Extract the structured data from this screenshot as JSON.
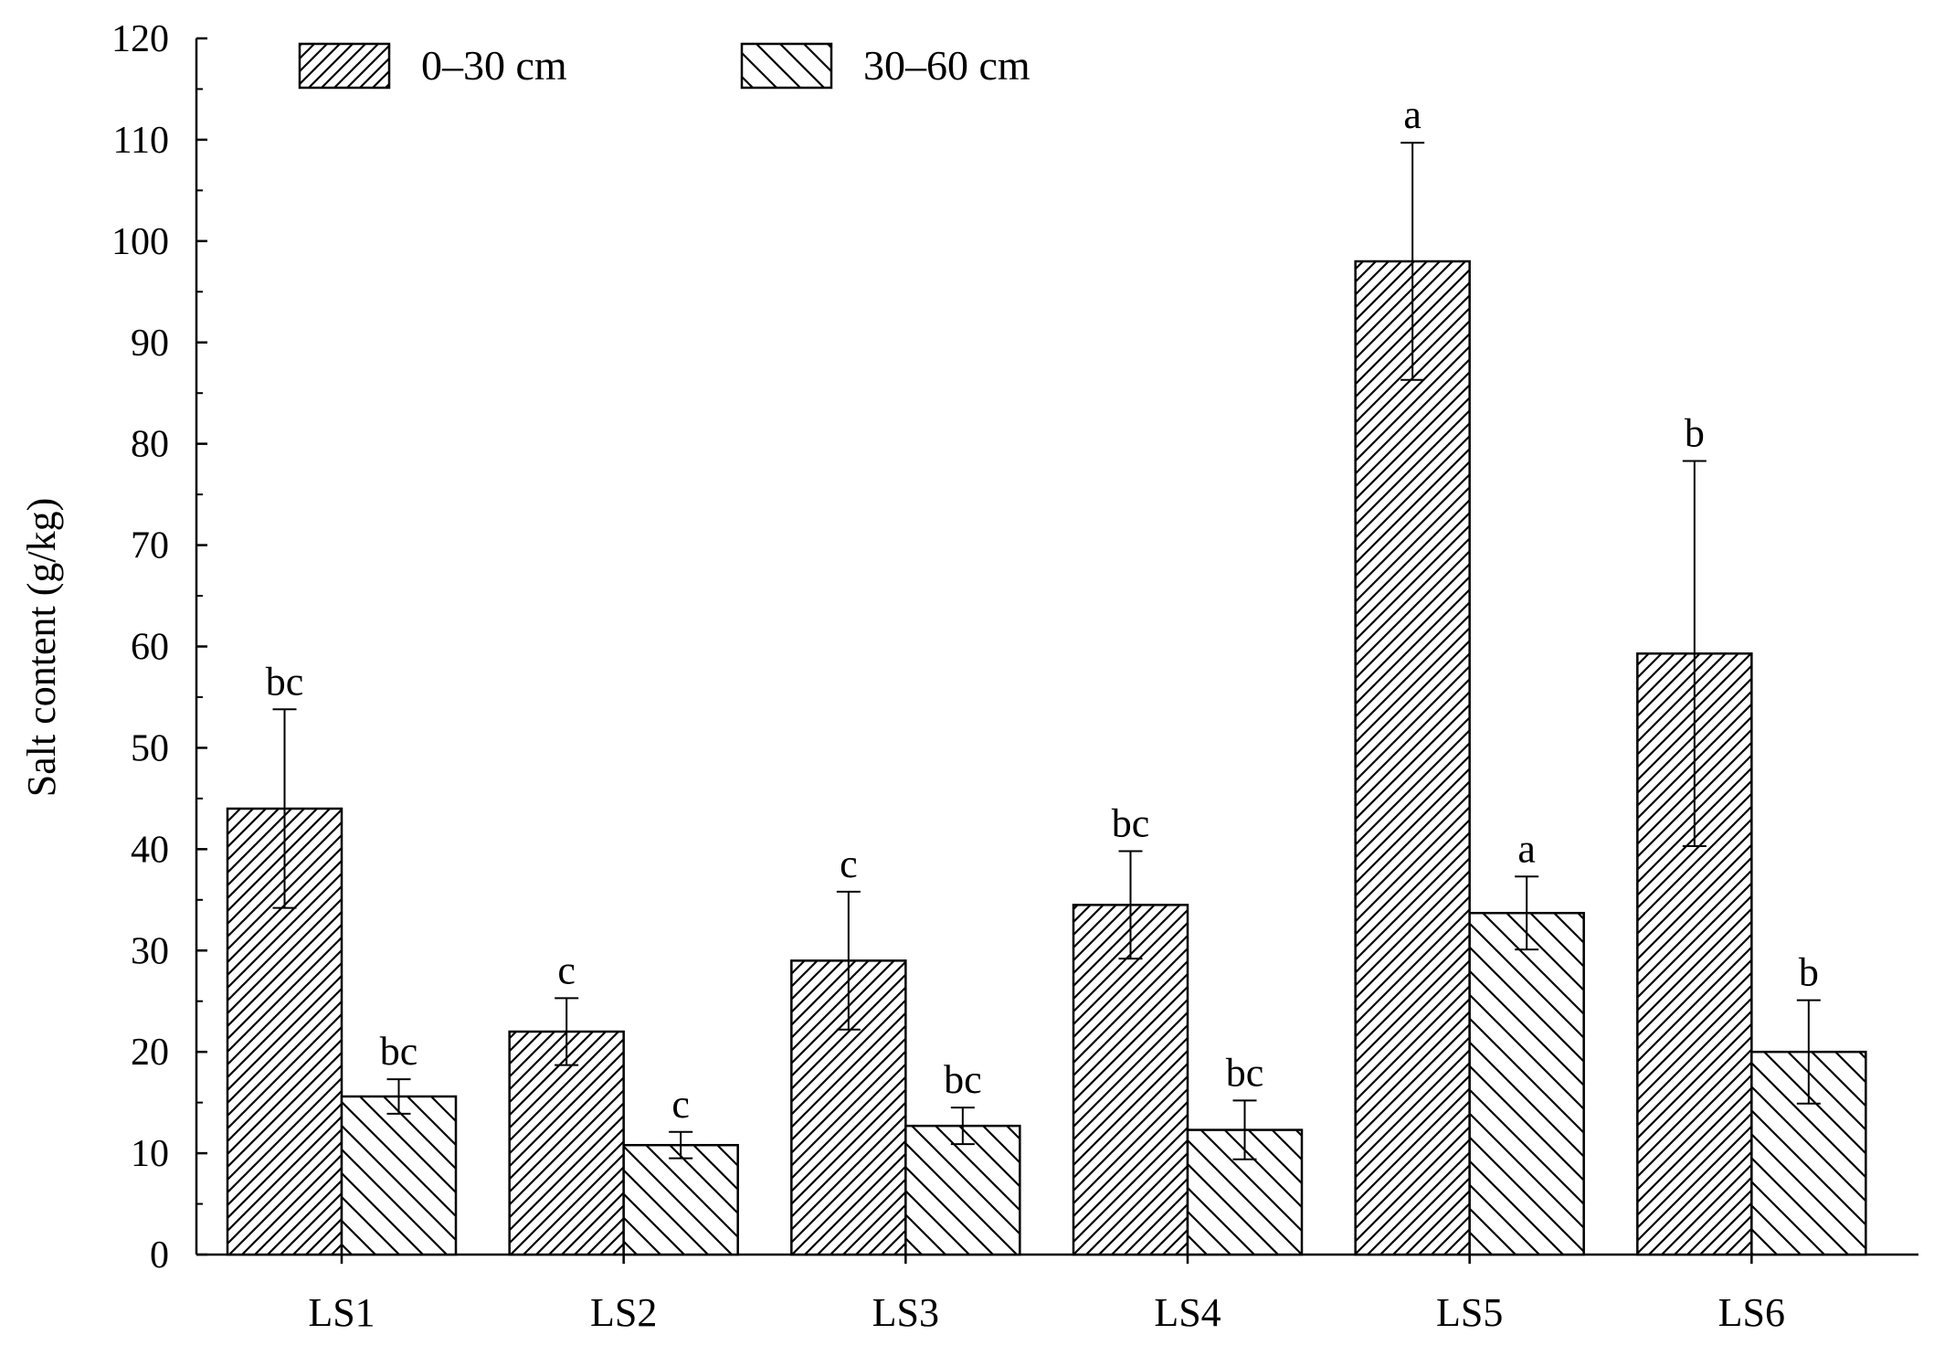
{
  "chart_data": {
    "type": "bar",
    "title": "",
    "xlabel": "",
    "ylabel": "Salt content (g/kg)",
    "ylim": [
      0,
      120
    ],
    "yticks": [
      0,
      10,
      20,
      30,
      40,
      50,
      60,
      70,
      80,
      90,
      100,
      110,
      120
    ],
    "grid": false,
    "legend_position": "top-left",
    "categories": [
      "LS1",
      "LS2",
      "LS3",
      "LS4",
      "LS5",
      "LS6"
    ],
    "series": [
      {
        "name": "0–30 cm",
        "pattern": "dense-diagonal-hatch",
        "values": [
          44,
          22,
          29,
          34.5,
          98,
          59.3
        ],
        "errors": [
          9.8,
          3.3,
          6.8,
          5.3,
          11.7,
          19
        ],
        "significance": [
          "bc",
          "c",
          "c",
          "bc",
          "a",
          "b"
        ]
      },
      {
        "name": "30–60 cm",
        "pattern": "sparse-back-diagonal-hatch",
        "values": [
          15.6,
          10.8,
          12.7,
          12.3,
          33.7,
          20
        ],
        "errors": [
          1.7,
          1.3,
          1.8,
          2.9,
          3.6,
          5.1
        ],
        "significance": [
          "bc",
          "c",
          "bc",
          "bc",
          "a",
          "b"
        ]
      }
    ]
  }
}
